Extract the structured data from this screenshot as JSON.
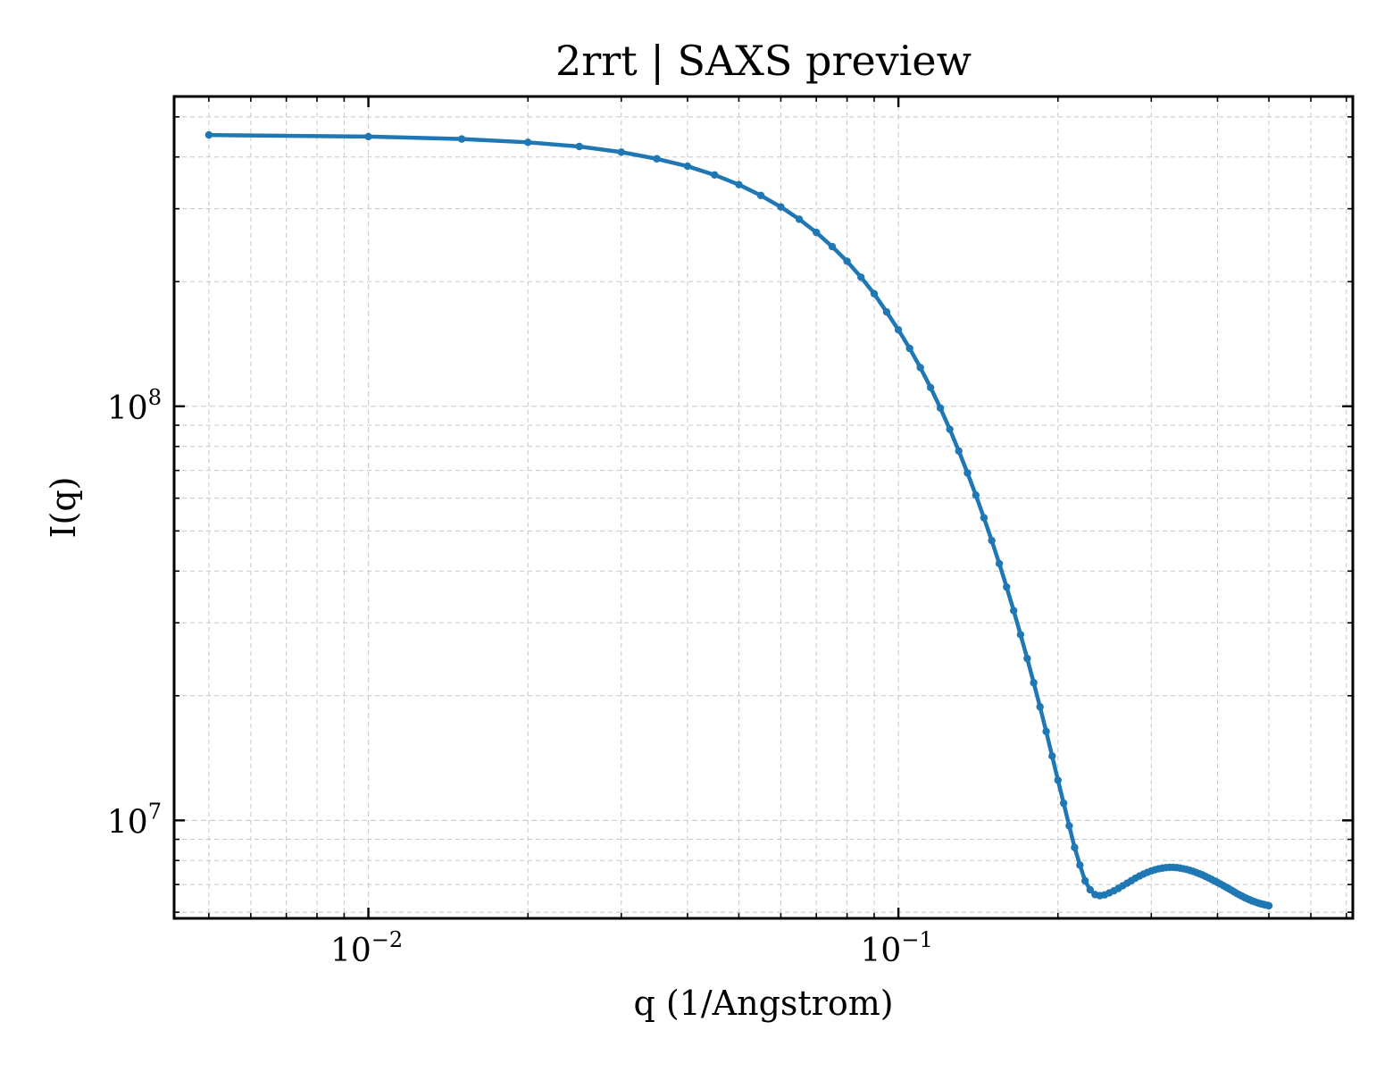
{
  "chart_data": {
    "type": "line",
    "title": "2rrt | SAXS preview",
    "xlabel": "q (1/Angstrom)",
    "ylabel": "I(q)",
    "x_scale": "log",
    "y_scale": "log",
    "xlim": [
      0.0043,
      0.72
    ],
    "ylim": [
      5800000,
      560000000
    ],
    "x_ticks": [
      {
        "value": 0.01,
        "base": "10",
        "exp": "−2"
      },
      {
        "value": 0.1,
        "base": "10",
        "exp": "−1"
      }
    ],
    "y_ticks": [
      {
        "value": 10000000,
        "base": "10",
        "exp": "7"
      },
      {
        "value": 100000000,
        "base": "10",
        "exp": "8"
      }
    ],
    "grid": true,
    "series_color": "#1f77b4",
    "series": [
      {
        "x": [
          0.005,
          0.01,
          0.015,
          0.02,
          0.025,
          0.03,
          0.035,
          0.04,
          0.045,
          0.05,
          0.055,
          0.06,
          0.065,
          0.07,
          0.075,
          0.08,
          0.085,
          0.09,
          0.095,
          0.1,
          0.105,
          0.11,
          0.115,
          0.12,
          0.125,
          0.13,
          0.135,
          0.14,
          0.145,
          0.15,
          0.155,
          0.16,
          0.165,
          0.17,
          0.175,
          0.18,
          0.185,
          0.19,
          0.195,
          0.2,
          0.205,
          0.21,
          0.215,
          0.22,
          0.225,
          0.23,
          0.235,
          0.24,
          0.245,
          0.25,
          0.255,
          0.26,
          0.265,
          0.27,
          0.275,
          0.28,
          0.285,
          0.29,
          0.295,
          0.3,
          0.305,
          0.31,
          0.315,
          0.32,
          0.325,
          0.33,
          0.335,
          0.34,
          0.345,
          0.35,
          0.355,
          0.36,
          0.365,
          0.37,
          0.375,
          0.38,
          0.385,
          0.39,
          0.395,
          0.4,
          0.405,
          0.41,
          0.415,
          0.42,
          0.425,
          0.43,
          0.435,
          0.44,
          0.445,
          0.45,
          0.455,
          0.46,
          0.465,
          0.47,
          0.475,
          0.48,
          0.485,
          0.49,
          0.495,
          0.5
        ],
        "y": [
          452000000,
          448000000,
          442000000,
          434000000,
          424000000,
          411000000,
          396000000,
          380000000,
          362000000,
          343000000,
          323000000,
          303000000,
          283000000,
          263000000,
          243000000,
          224000000,
          205000000,
          187000000,
          169000000,
          153000000,
          138000000,
          124000000,
          111000000,
          99000000,
          88000000,
          78000000,
          69000000,
          61000000,
          53800000,
          47400000,
          41700000,
          36600000,
          32100000,
          28100000,
          24600000,
          21500000,
          18800000,
          16400000,
          14300000,
          12500000,
          11000000,
          9700000,
          8600000,
          7800000,
          7150000,
          6800000,
          6620000,
          6580000,
          6610000,
          6680000,
          6760000,
          6850000,
          6950000,
          7050000,
          7150000,
          7250000,
          7340000,
          7420000,
          7490000,
          7550000,
          7600000,
          7640000,
          7670000,
          7690000,
          7700000,
          7700000,
          7690000,
          7670000,
          7640000,
          7610000,
          7570000,
          7530000,
          7480000,
          7430000,
          7380000,
          7320000,
          7260000,
          7200000,
          7140000,
          7080000,
          7020000,
          6960000,
          6900000,
          6840000,
          6780000,
          6720000,
          6660000,
          6610000,
          6560000,
          6510000,
          6470000,
          6430000,
          6390000,
          6360000,
          6330000,
          6300000,
          6280000,
          6260000,
          6240000,
          6220000
        ]
      }
    ]
  }
}
